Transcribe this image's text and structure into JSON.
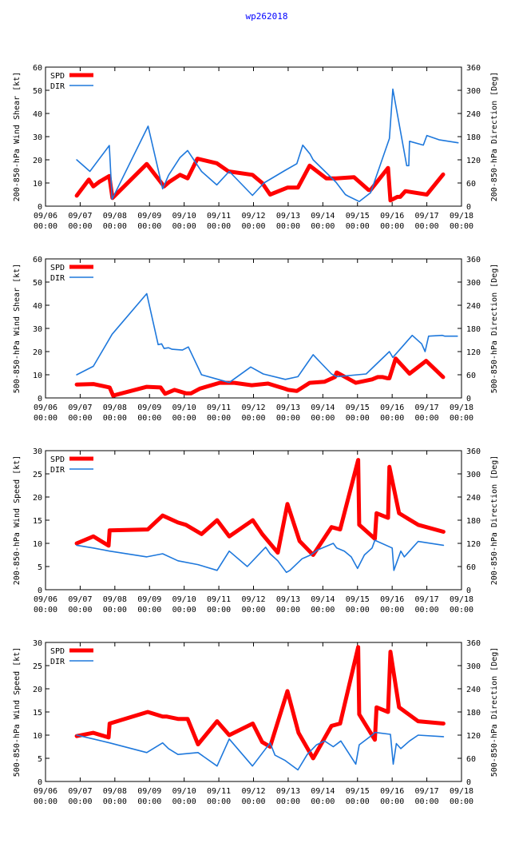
{
  "title": "wp262018",
  "colors": {
    "spd": "#ff0000",
    "dir": "#1e78dc",
    "title": "#0000ff",
    "axis": "#000000"
  },
  "x_ticks": [
    [
      "09/06",
      "00:00"
    ],
    [
      "09/07",
      "00:00"
    ],
    [
      "09/08",
      "00:00"
    ],
    [
      "09/09",
      "00:00"
    ],
    [
      "09/10",
      "00:00"
    ],
    [
      "09/11",
      "00:00"
    ],
    [
      "09/12",
      "00:00"
    ],
    [
      "09/13",
      "00:00"
    ],
    [
      "09/14",
      "00:00"
    ],
    [
      "09/15",
      "00:00"
    ],
    [
      "09/16",
      "00:00"
    ],
    [
      "09/17",
      "00:00"
    ],
    [
      "09/18",
      "00:00"
    ]
  ],
  "chart_data": [
    {
      "type": "line",
      "ylabel": "200-850-hPa Wind Shear [kt]",
      "y2label": "200-850-hPa Direction [Deg]",
      "xlim": [
        0,
        12
      ],
      "ylim": [
        0,
        60
      ],
      "y2lim": [
        0,
        360
      ],
      "yticks": [
        0,
        10,
        20,
        30,
        40,
        50,
        60
      ],
      "y2ticks": [
        0,
        60,
        120,
        180,
        240,
        300,
        360
      ],
      "legend": [
        "SPD",
        "DIR"
      ],
      "series": [
        {
          "name": "SPD",
          "axis": "left",
          "x": [
            0.9,
            1.25,
            1.38,
            1.55,
            1.84,
            1.93,
            2.92,
            3.42,
            3.57,
            3.88,
            4.1,
            4.38,
            4.94,
            5.28,
            5.97,
            6.25,
            6.48,
            6.98,
            7.28,
            7.62,
            8.1,
            8.38,
            8.9,
            9.32,
            9.38,
            9.88,
            9.95,
            10.15,
            10.23,
            10.38,
            11.0,
            11.47
          ],
          "values": [
            4.5,
            11.5,
            8.5,
            10.5,
            13.0,
            3.5,
            18.2,
            8.5,
            10.5,
            13.5,
            12.0,
            20.5,
            18.5,
            15.0,
            13.5,
            10.0,
            5.0,
            8.0,
            8.0,
            17.5,
            12.0,
            12.0,
            12.5,
            7.0,
            7.0,
            16.5,
            2.5,
            4.0,
            4.0,
            6.5,
            5.0,
            13.7
          ]
        },
        {
          "name": "DIR",
          "axis": "right",
          "x": [
            0.9,
            1.28,
            1.84,
            1.92,
            2.96,
            3.38,
            3.55,
            3.88,
            4.1,
            4.5,
            4.94,
            5.3,
            5.97,
            6.3,
            6.9,
            7.25,
            7.42,
            7.63,
            7.72,
            8.38,
            8.65,
            8.75,
            9.05,
            9.38,
            9.92,
            10.02,
            10.42,
            10.48,
            10.5,
            10.9,
            11.0,
            11.35,
            11.9
          ],
          "values": [
            120,
            90,
            157,
            18,
            207,
            45,
            80,
            126,
            144,
            90,
            55,
            90,
            28,
            60,
            92,
            110,
            158,
            135,
            120,
            62,
            30,
            25,
            12,
            35,
            175,
            303,
            105,
            105,
            168,
            158,
            183,
            172,
            164
          ]
        }
      ]
    },
    {
      "type": "line",
      "ylabel": "500-850-hPa Wind Shear [kt]",
      "y2label": "500-850-hPa Direction [Deg]",
      "xlim": [
        0,
        12
      ],
      "ylim": [
        0,
        60
      ],
      "y2lim": [
        0,
        360
      ],
      "yticks": [
        0,
        10,
        20,
        30,
        40,
        50,
        60
      ],
      "y2ticks": [
        0,
        60,
        120,
        180,
        240,
        300,
        360
      ],
      "legend": [
        "SPD",
        "DIR"
      ],
      "series": [
        {
          "name": "SPD",
          "axis": "left",
          "x": [
            0.9,
            1.38,
            1.85,
            1.95,
            2.92,
            3.32,
            3.45,
            3.72,
            4.05,
            4.2,
            4.45,
            5.02,
            5.45,
            5.95,
            6.42,
            6.68,
            6.9,
            7.0,
            7.25,
            7.62,
            8.05,
            8.35,
            8.4,
            8.95,
            9.42,
            9.58,
            9.73,
            9.87,
            9.92,
            10.1,
            10.5,
            10.98,
            11.47
          ],
          "values": [
            5.8,
            6.0,
            4.5,
            1.0,
            4.8,
            4.5,
            1.8,
            3.5,
            2.0,
            2.0,
            4.0,
            6.5,
            6.5,
            5.5,
            6.2,
            5.0,
            4.0,
            3.5,
            3.0,
            6.5,
            7.0,
            9.0,
            11.0,
            6.5,
            8.0,
            9.0,
            9.0,
            8.5,
            8.5,
            17.0,
            10.5,
            16.0,
            9.0
          ]
        },
        {
          "name": "DIR",
          "axis": "right",
          "x": [
            0.9,
            1.38,
            1.92,
            2.92,
            3.25,
            3.35,
            3.42,
            3.55,
            3.65,
            3.95,
            4.12,
            4.5,
            4.98,
            5.3,
            5.92,
            6.28,
            6.92,
            7.28,
            7.55,
            7.72,
            7.95,
            8.25,
            8.4,
            9.25,
            9.92,
            10.02,
            10.58,
            10.85,
            10.95,
            11.05,
            11.45,
            11.52,
            11.88
          ],
          "values": [
            60,
            82,
            165,
            270,
            138,
            140,
            128,
            130,
            126,
            124,
            132,
            60,
            48,
            40,
            80,
            62,
            48,
            55,
            90,
            112,
            90,
            62,
            55,
            62,
            120,
            105,
            162,
            140,
            120,
            160,
            162,
            160,
            160
          ]
        }
      ]
    },
    {
      "type": "line",
      "ylabel": "200-850-hPa Wind Speed [kt]",
      "y2label": "200-850-hPa Direction [Deg]",
      "xlim": [
        0,
        12
      ],
      "ylim": [
        0,
        30
      ],
      "y2lim": [
        0,
        360
      ],
      "yticks": [
        0,
        5,
        10,
        15,
        20,
        25,
        30
      ],
      "y2ticks": [
        0,
        60,
        120,
        180,
        240,
        300,
        360
      ],
      "legend": [
        "SPD",
        "DIR"
      ],
      "series": [
        {
          "name": "SPD",
          "axis": "left",
          "x": [
            0.9,
            1.38,
            1.82,
            1.85,
            2.95,
            3.38,
            3.82,
            4.05,
            4.5,
            4.95,
            5.3,
            5.98,
            6.25,
            6.7,
            6.98,
            7.33,
            7.72,
            8.25,
            8.5,
            9.02,
            9.05,
            9.5,
            9.55,
            9.88,
            9.92,
            10.2,
            10.75,
            11.48
          ],
          "values": [
            10.0,
            11.5,
            9.5,
            12.8,
            13.0,
            16.0,
            14.5,
            14.0,
            12.0,
            15.0,
            11.5,
            15.0,
            12.0,
            8.0,
            18.5,
            10.5,
            7.5,
            13.5,
            13.0,
            28.0,
            14.0,
            11.0,
            16.5,
            15.5,
            26.5,
            16.5,
            14.0,
            12.5
          ]
        },
        {
          "name": "DIR",
          "axis": "right",
          "x": [
            0.9,
            1.38,
            1.85,
            2.92,
            3.38,
            3.82,
            4.4,
            4.95,
            5.3,
            5.82,
            6.35,
            6.48,
            6.7,
            6.95,
            7.05,
            7.4,
            7.65,
            7.85,
            8.3,
            8.4,
            8.62,
            8.82,
            9.0,
            9.2,
            9.42,
            9.5,
            10.0,
            10.05,
            10.25,
            10.35,
            10.75,
            11.48
          ],
          "values": [
            115,
            108,
            100,
            85,
            93,
            75,
            65,
            50,
            100,
            60,
            110,
            93,
            75,
            45,
            50,
            80,
            90,
            103,
            120,
            108,
            100,
            85,
            55,
            90,
            108,
            128,
            108,
            50,
            100,
            85,
            125,
            115
          ]
        }
      ]
    },
    {
      "type": "line",
      "ylabel": "500-850-hPa Wind Speed [kt]",
      "y2label": "500-850-hPa Direction [Deg]",
      "xlim": [
        0,
        12
      ],
      "ylim": [
        0,
        30
      ],
      "y2lim": [
        0,
        360
      ],
      "yticks": [
        0,
        5,
        10,
        15,
        20,
        25,
        30
      ],
      "y2ticks": [
        0,
        60,
        120,
        180,
        240,
        300,
        360
      ],
      "legend": [
        "SPD",
        "DIR"
      ],
      "series": [
        {
          "name": "SPD",
          "axis": "left",
          "x": [
            0.9,
            1.38,
            1.82,
            1.85,
            2.95,
            3.38,
            3.5,
            3.82,
            4.1,
            4.4,
            4.95,
            5.3,
            5.98,
            6.25,
            6.48,
            6.98,
            7.3,
            7.72,
            8.25,
            8.5,
            9.02,
            9.05,
            9.5,
            9.55,
            9.88,
            9.95,
            10.2,
            10.75,
            11.48
          ],
          "values": [
            9.8,
            10.5,
            9.5,
            12.5,
            15.0,
            14.0,
            14.0,
            13.5,
            13.5,
            8.0,
            13.0,
            10.0,
            12.5,
            8.5,
            7.5,
            19.5,
            10.5,
            5.0,
            12.0,
            12.5,
            29.0,
            14.5,
            9.0,
            16.0,
            15.0,
            28.0,
            16.0,
            13.0,
            12.5
          ]
        },
        {
          "name": "DIR",
          "axis": "right",
          "x": [
            0.9,
            1.38,
            1.85,
            2.92,
            3.38,
            3.55,
            3.82,
            4.4,
            4.95,
            5.3,
            5.97,
            6.48,
            6.62,
            6.9,
            7.28,
            7.55,
            7.82,
            8.05,
            8.3,
            8.52,
            8.95,
            9.05,
            9.45,
            9.5,
            9.95,
            10.03,
            10.12,
            10.25,
            10.5,
            10.75,
            11.48
          ],
          "values": [
            120,
            110,
            100,
            75,
            100,
            85,
            70,
            75,
            40,
            110,
            40,
            100,
            68,
            55,
            30,
            70,
            95,
            105,
            90,
            105,
            45,
            95,
            122,
            127,
            122,
            45,
            98,
            85,
            105,
            120,
            116
          ]
        }
      ]
    }
  ]
}
